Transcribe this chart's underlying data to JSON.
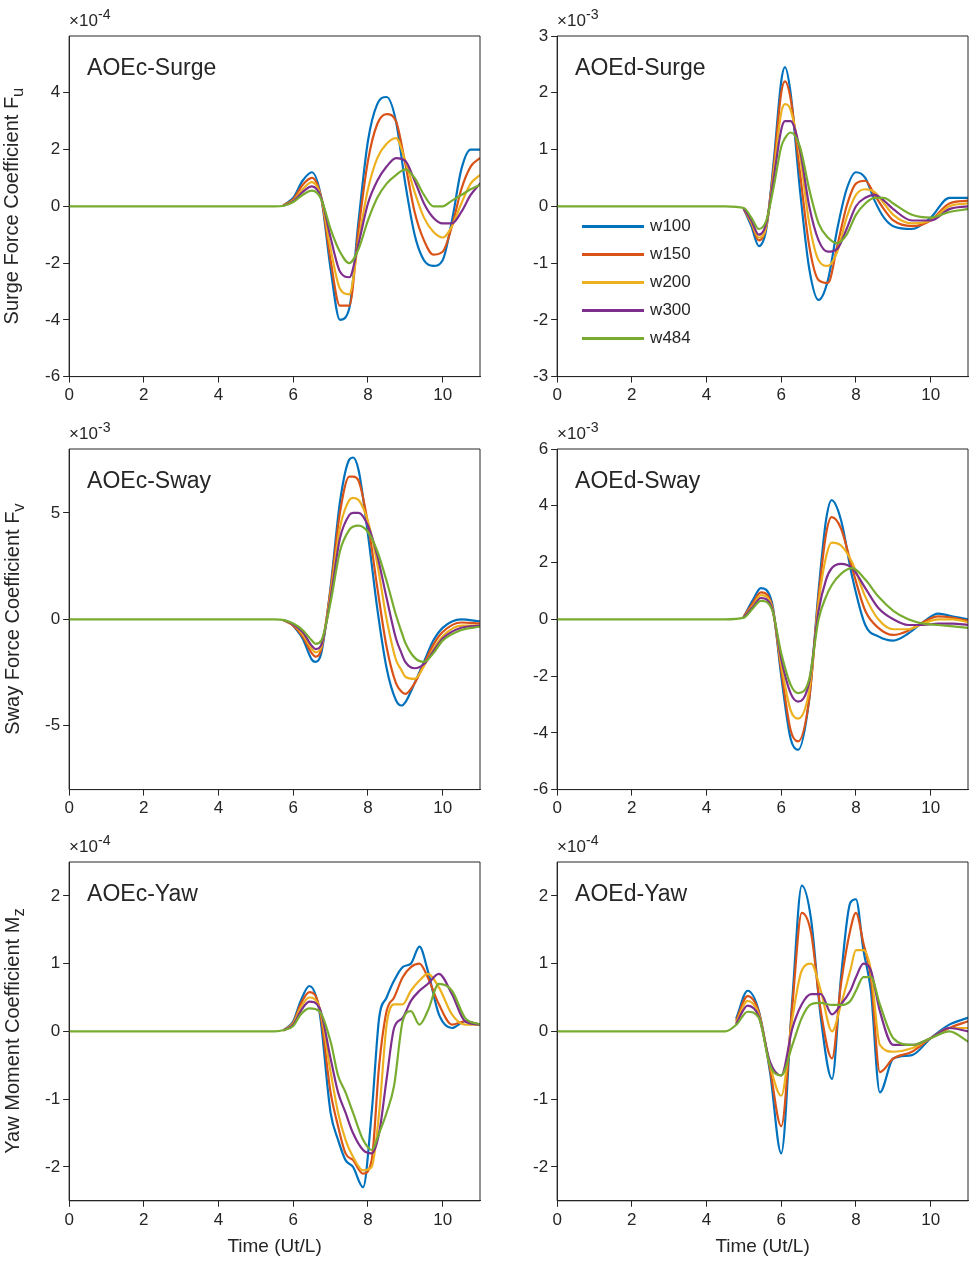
{
  "chart_data": [
    {
      "type": "line",
      "title": "AOEc-Surge",
      "ylabel": "Surge Force Coefficient F$_{u}$",
      "annotations": [
        "×10$^{-4}$"
      ],
      "xlim": [
        0,
        11
      ],
      "xticks": [
        0,
        2,
        4,
        6,
        8,
        10
      ],
      "ylim": [
        -6,
        6
      ],
      "yticks": [
        -6,
        -4,
        -2,
        0,
        2,
        4
      ],
      "grid": false,
      "x": [
        0,
        5,
        5.5,
        5.75,
        6,
        6.25,
        6.5,
        6.75,
        7,
        7.25,
        7.5,
        7.75,
        8,
        8.25,
        8.5,
        8.75,
        9,
        9.25,
        9.5,
        9.75,
        10,
        10.25,
        10.5,
        10.75,
        11
      ],
      "series": [
        {
          "color": "#0072bd",
          "values": [
            null,
            null,
            null,
            0.05,
            0.3,
            0.9,
            1.2,
            0.3,
            -2.2,
            -4.0,
            -3.6,
            -0.5,
            2.3,
            3.6,
            3.85,
            3.0,
            0.8,
            -1.0,
            -1.9,
            -2.1,
            -1.9,
            -0.5,
            1.3,
            2.0,
            2.0
          ]
        },
        {
          "color": "#d95319",
          "values": [
            null,
            null,
            null,
            0.05,
            0.25,
            0.75,
            1.0,
            0.3,
            -1.9,
            -3.5,
            -3.5,
            -0.8,
            1.6,
            2.9,
            3.25,
            3.0,
            1.5,
            -0.2,
            -1.2,
            -1.7,
            -1.6,
            -0.7,
            0.6,
            1.4,
            1.7
          ]
        },
        {
          "color": "#edb120",
          "values": [
            null,
            null,
            null,
            0.04,
            0.2,
            0.6,
            0.85,
            0.3,
            -1.5,
            -2.9,
            -3.1,
            -1.2,
            0.6,
            1.7,
            2.2,
            2.4,
            1.6,
            0.5,
            -0.4,
            -0.9,
            -1.1,
            -0.7,
            0.1,
            0.8,
            1.1
          ]
        },
        {
          "color": "#7e2f8e",
          "values": [
            null,
            null,
            null,
            0.03,
            0.18,
            0.5,
            0.7,
            0.3,
            -1.1,
            -2.3,
            -2.5,
            -1.3,
            0.1,
            0.9,
            1.4,
            1.7,
            1.6,
            0.9,
            0.1,
            -0.4,
            -0.6,
            -0.6,
            -0.2,
            0.4,
            0.8
          ]
        },
        {
          "color": "#77ac30",
          "values": [
            0,
            0,
            0,
            0.02,
            0.15,
            0.4,
            0.55,
            0.25,
            -0.8,
            -1.6,
            -2.0,
            -1.5,
            -0.5,
            0.3,
            0.8,
            1.1,
            1.3,
            1.0,
            0.4,
            0.0,
            0.0,
            0.2,
            0.4,
            0.6,
            0.75
          ]
        }
      ]
    },
    {
      "type": "line",
      "title": "AOEd-Surge",
      "annotations": [
        "×10$^{-3}$"
      ],
      "xlim": [
        0,
        11
      ],
      "xticks": [
        0,
        2,
        4,
        6,
        8,
        10
      ],
      "ylim": [
        -3,
        3
      ],
      "yticks": [
        -3,
        -2,
        -1,
        0,
        1,
        2,
        3
      ],
      "grid": false,
      "legend": "bottom left",
      "x": [
        0,
        4.5,
        5,
        5.2,
        5.4,
        5.6,
        5.8,
        6,
        6.1,
        6.25,
        6.5,
        6.75,
        7,
        7.25,
        7.5,
        7.75,
        8,
        8.25,
        8.5,
        8.75,
        9,
        9.5,
        10,
        10.5,
        11
      ],
      "series": [
        {
          "name": "w100",
          "color": "#0072bd",
          "values": [
            null,
            null,
            -0.05,
            -0.35,
            -0.7,
            -0.4,
            0.8,
            2.2,
            2.45,
            2.0,
            0.3,
            -1.1,
            -1.65,
            -1.3,
            -0.4,
            0.3,
            0.6,
            0.5,
            0.1,
            -0.2,
            -0.35,
            -0.4,
            -0.2,
            0.15,
            0.15
          ]
        },
        {
          "name": "w150",
          "color": "#d95319",
          "values": [
            null,
            null,
            -0.05,
            -0.3,
            -0.6,
            -0.35,
            0.7,
            2.0,
            2.2,
            1.9,
            0.6,
            -0.7,
            -1.3,
            -1.35,
            -0.7,
            0.0,
            0.4,
            0.45,
            0.2,
            -0.05,
            -0.25,
            -0.35,
            -0.25,
            0.05,
            0.1
          ]
        },
        {
          "name": "w200",
          "color": "#edb120",
          "values": [
            null,
            null,
            -0.04,
            -0.28,
            -0.55,
            -0.35,
            0.6,
            1.65,
            1.8,
            1.7,
            0.9,
            -0.3,
            -0.95,
            -1.05,
            -0.8,
            -0.2,
            0.2,
            0.3,
            0.25,
            0.05,
            -0.15,
            -0.3,
            -0.25,
            0.0,
            0.05
          ]
        },
        {
          "name": "w300",
          "color": "#7e2f8e",
          "values": [
            null,
            null,
            -0.04,
            -0.25,
            -0.5,
            -0.3,
            0.5,
            1.35,
            1.5,
            1.5,
            1.0,
            0.0,
            -0.6,
            -0.8,
            -0.75,
            -0.4,
            0.0,
            0.15,
            0.2,
            0.1,
            -0.05,
            -0.25,
            -0.25,
            -0.05,
            0.0
          ]
        },
        {
          "name": "w484",
          "color": "#77ac30",
          "values": [
            0,
            0,
            -0.03,
            -0.2,
            -0.4,
            -0.25,
            0.35,
            1.05,
            1.2,
            1.3,
            1.05,
            0.3,
            -0.3,
            -0.55,
            -0.65,
            -0.5,
            -0.15,
            0.05,
            0.15,
            0.15,
            0.05,
            -0.15,
            -0.2,
            -0.1,
            -0.05
          ]
        }
      ]
    },
    {
      "type": "line",
      "title": "AOEc-Sway",
      "ylabel": "Sway Force Coefficient F$_{v}$",
      "annotations": [
        "×10$^{-3}$"
      ],
      "xlim": [
        0,
        11
      ],
      "xticks": [
        0,
        2,
        4,
        6,
        8,
        10
      ],
      "ylim": [
        -8,
        8
      ],
      "yticks": [
        -5,
        0,
        5
      ],
      "grid": false,
      "x": [
        0,
        5.5,
        5.75,
        6,
        6.25,
        6.5,
        6.6,
        6.75,
        7,
        7.25,
        7.5,
        7.6,
        7.75,
        8,
        8.25,
        8.5,
        8.75,
        8.9,
        9,
        9.25,
        9.5,
        9.75,
        10,
        10.5,
        11
      ],
      "series": [
        {
          "color": "#0072bd",
          "values": [
            null,
            null,
            null,
            -0.3,
            -0.9,
            -1.9,
            -2.0,
            -1.6,
            1.5,
            5.5,
            7.5,
            7.6,
            7.0,
            4.0,
            0.5,
            -2.3,
            -3.8,
            -4.05,
            -3.9,
            -3.0,
            -2.0,
            -1.0,
            -0.4,
            0.0,
            -0.1
          ]
        },
        {
          "color": "#d95319",
          "values": [
            null,
            null,
            -0.05,
            -0.3,
            -0.8,
            -1.6,
            -1.75,
            -1.4,
            1.4,
            5.0,
            6.7,
            6.7,
            6.5,
            4.5,
            1.5,
            -1.3,
            -3.0,
            -3.4,
            -3.5,
            -3.0,
            -2.1,
            -1.2,
            -0.6,
            -0.15,
            -0.2
          ]
        },
        {
          "color": "#edb120",
          "values": [
            null,
            null,
            -0.05,
            -0.25,
            -0.7,
            -1.4,
            -1.55,
            -1.3,
            1.2,
            4.3,
            5.6,
            5.7,
            5.6,
            4.6,
            2.6,
            0.0,
            -1.9,
            -2.4,
            -2.7,
            -2.8,
            -2.2,
            -1.4,
            -0.8,
            -0.3,
            -0.3
          ]
        },
        {
          "color": "#7e2f8e",
          "values": [
            null,
            null,
            -0.04,
            -0.25,
            -0.6,
            -1.25,
            -1.4,
            -1.2,
            1.0,
            3.8,
            4.9,
            5.0,
            5.0,
            4.4,
            3.0,
            1.0,
            -0.9,
            -1.6,
            -2.0,
            -2.3,
            -2.1,
            -1.5,
            -0.9,
            -0.4,
            -0.3
          ]
        },
        {
          "color": "#77ac30",
          "values": [
            0,
            0,
            -0.04,
            -0.2,
            -0.5,
            -1.0,
            -1.15,
            -1.0,
            0.8,
            3.2,
            4.2,
            4.35,
            4.4,
            4.1,
            3.2,
            1.8,
            0.2,
            -0.6,
            -1.1,
            -1.8,
            -2.0,
            -1.6,
            -1.0,
            -0.5,
            -0.35
          ]
        }
      ]
    },
    {
      "type": "line",
      "title": "AOEd-Sway",
      "annotations": [
        "×10$^{-3}$"
      ],
      "xlim": [
        0,
        11
      ],
      "xticks": [
        0,
        2,
        4,
        6,
        8,
        10
      ],
      "ylim": [
        -6,
        6
      ],
      "yticks": [
        -6,
        -4,
        -2,
        0,
        2,
        4,
        6
      ],
      "grid": false,
      "x": [
        0,
        4.5,
        5,
        5.25,
        5.45,
        5.75,
        6,
        6.25,
        6.45,
        6.75,
        7,
        7.2,
        7.35,
        7.6,
        7.9,
        8.25,
        8.6,
        9,
        9.4,
        9.8,
        10.2,
        10.6,
        11
      ],
      "series": [
        {
          "color": "#0072bd",
          "values": [
            null,
            null,
            0.1,
            0.7,
            1.1,
            0.6,
            -2.0,
            -4.2,
            -4.6,
            -2.8,
            1.0,
            3.5,
            4.2,
            3.5,
            1.5,
            -0.2,
            -0.6,
            -0.75,
            -0.5,
            -0.1,
            0.2,
            0.1,
            0.0
          ]
        },
        {
          "color": "#d95319",
          "values": [
            null,
            null,
            0.1,
            0.6,
            0.95,
            0.5,
            -1.8,
            -3.9,
            -4.3,
            -2.8,
            0.8,
            3.0,
            3.6,
            3.2,
            1.8,
            0.3,
            -0.3,
            -0.55,
            -0.4,
            -0.1,
            0.1,
            0.05,
            -0.05
          ]
        },
        {
          "color": "#edb120",
          "values": [
            null,
            null,
            0.08,
            0.5,
            0.85,
            0.45,
            -1.6,
            -3.2,
            -3.5,
            -2.5,
            0.6,
            2.2,
            2.7,
            2.6,
            2.0,
            0.8,
            0.0,
            -0.35,
            -0.35,
            -0.15,
            0.0,
            0.0,
            -0.1
          ]
        },
        {
          "color": "#7e2f8e",
          "values": [
            null,
            null,
            0.07,
            0.45,
            0.75,
            0.4,
            -1.4,
            -2.6,
            -2.9,
            -2.2,
            0.3,
            1.4,
            1.8,
            1.95,
            1.8,
            1.1,
            0.4,
            0.0,
            -0.2,
            -0.2,
            -0.15,
            -0.15,
            -0.2
          ]
        },
        {
          "color": "#77ac30",
          "values": [
            0,
            0,
            0.06,
            0.4,
            0.65,
            0.35,
            -1.2,
            -2.3,
            -2.6,
            -2.1,
            0.0,
            0.8,
            1.2,
            1.6,
            1.8,
            1.4,
            0.8,
            0.3,
            0.0,
            -0.15,
            -0.2,
            -0.25,
            -0.3
          ]
        }
      ]
    },
    {
      "type": "line",
      "title": "AOEc-Yaw",
      "ylabel": "Yaw Moment Coefficient M$_{z}$",
      "xlabel": "Time (Ut/L)",
      "annotations": [
        "×10$^{-4}$"
      ],
      "xlim": [
        0,
        11
      ],
      "xticks": [
        0,
        2,
        4,
        6,
        8,
        10
      ],
      "ylim": [
        -2.5,
        2.5
      ],
      "yticks": [
        -2,
        -1,
        0,
        1,
        2
      ],
      "grid": false,
      "x": [
        0,
        5.5,
        5.75,
        6,
        6.2,
        6.43,
        6.7,
        7,
        7.2,
        7.4,
        7.6,
        7.87,
        8.1,
        8.3,
        8.5,
        8.7,
        8.93,
        9.15,
        9.38,
        9.6,
        9.9,
        10.25,
        10.6,
        11
      ],
      "series": [
        {
          "color": "#0072bd",
          "values": [
            null,
            null,
            0.02,
            0.15,
            0.45,
            0.67,
            0.3,
            -1.2,
            -1.6,
            -1.9,
            -2.0,
            -2.3,
            -1.2,
            0.2,
            0.5,
            0.75,
            0.95,
            1.0,
            1.25,
            0.9,
            0.25,
            0.05,
            0.15,
            0.1
          ]
        },
        {
          "color": "#d95319",
          "values": [
            null,
            null,
            0.02,
            0.13,
            0.4,
            0.58,
            0.35,
            -0.9,
            -1.4,
            -1.8,
            -1.9,
            -2.1,
            -1.9,
            -0.5,
            0.3,
            0.5,
            0.8,
            0.95,
            1.0,
            0.8,
            0.4,
            0.1,
            0.15,
            0.1
          ]
        },
        {
          "color": "#edb120",
          "values": [
            null,
            null,
            0.02,
            0.12,
            0.35,
            0.5,
            0.35,
            -0.6,
            -1.2,
            -1.6,
            -1.85,
            -2.05,
            -2.0,
            -1.2,
            0.1,
            0.4,
            0.4,
            0.6,
            0.75,
            0.85,
            0.65,
            0.25,
            0.1,
            0.1
          ]
        },
        {
          "color": "#7e2f8e",
          "values": [
            null,
            null,
            0.02,
            0.1,
            0.3,
            0.44,
            0.35,
            -0.4,
            -0.9,
            -1.2,
            -1.5,
            -1.75,
            -1.8,
            -1.5,
            -0.7,
            0.05,
            0.2,
            0.45,
            0.6,
            0.7,
            0.85,
            0.55,
            0.15,
            0.1
          ]
        },
        {
          "color": "#77ac30",
          "values": [
            0,
            0,
            0.02,
            0.08,
            0.25,
            0.34,
            0.3,
            -0.15,
            -0.65,
            -0.9,
            -1.2,
            -1.6,
            -1.75,
            -1.5,
            -1.2,
            -0.8,
            0.15,
            0.3,
            0.1,
            0.3,
            0.7,
            0.6,
            0.2,
            0.1
          ]
        }
      ]
    },
    {
      "type": "line",
      "title": "AOEd-Yaw",
      "xlabel": "Time (Ut/L)",
      "annotations": [
        "×10$^{-4}$"
      ],
      "xlim": [
        0,
        11
      ],
      "xticks": [
        0,
        2,
        4,
        6,
        8,
        10
      ],
      "ylim": [
        -2.5,
        2.5
      ],
      "yticks": [
        -2,
        -1,
        0,
        1,
        2
      ],
      "grid": false,
      "x": [
        0,
        4.5,
        4.8,
        5.1,
        5.4,
        5.7,
        6.0,
        6.3,
        6.55,
        6.8,
        7.06,
        7.36,
        7.6,
        7.85,
        8.0,
        8.2,
        8.4,
        8.64,
        9.0,
        9.5,
        10.0,
        10.5,
        11
      ],
      "series": [
        {
          "color": "#0072bd",
          "values": [
            null,
            null,
            0.2,
            0.6,
            0.3,
            -0.6,
            -1.8,
            0.5,
            2.15,
            1.65,
            0.2,
            -0.7,
            0.8,
            1.9,
            1.95,
            1.2,
            0.6,
            -0.9,
            -0.4,
            -0.35,
            -0.1,
            0.1,
            0.2
          ]
        },
        {
          "color": "#d95319",
          "values": [
            null,
            null,
            0.17,
            0.52,
            0.28,
            -0.55,
            -1.4,
            0.4,
            1.75,
            1.45,
            0.3,
            -0.4,
            0.7,
            1.5,
            1.75,
            1.3,
            0.8,
            -0.6,
            -0.4,
            -0.3,
            -0.1,
            0.05,
            0.15
          ]
        },
        {
          "color": "#edb120",
          "values": [
            null,
            null,
            0.14,
            0.45,
            0.25,
            -0.5,
            -0.95,
            0.2,
            0.9,
            1.0,
            0.6,
            0.0,
            0.4,
            0.9,
            1.2,
            1.2,
            0.9,
            -0.2,
            -0.3,
            -0.25,
            -0.1,
            0.05,
            0.05
          ]
        },
        {
          "color": "#7e2f8e",
          "values": [
            null,
            null,
            0.12,
            0.38,
            0.22,
            -0.45,
            -0.65,
            0.05,
            0.4,
            0.55,
            0.55,
            0.25,
            0.4,
            0.6,
            0.8,
            1.0,
            0.9,
            0.3,
            -0.2,
            -0.2,
            -0.1,
            0.05,
            0.0
          ]
        },
        {
          "color": "#77ac30",
          "values": [
            0,
            0,
            0.1,
            0.29,
            0.2,
            -0.5,
            -0.65,
            -0.2,
            0.2,
            0.4,
            0.42,
            0.39,
            0.39,
            0.45,
            0.6,
            0.8,
            0.8,
            0.4,
            -0.1,
            -0.2,
            -0.1,
            0.0,
            -0.15
          ]
        }
      ]
    }
  ]
}
